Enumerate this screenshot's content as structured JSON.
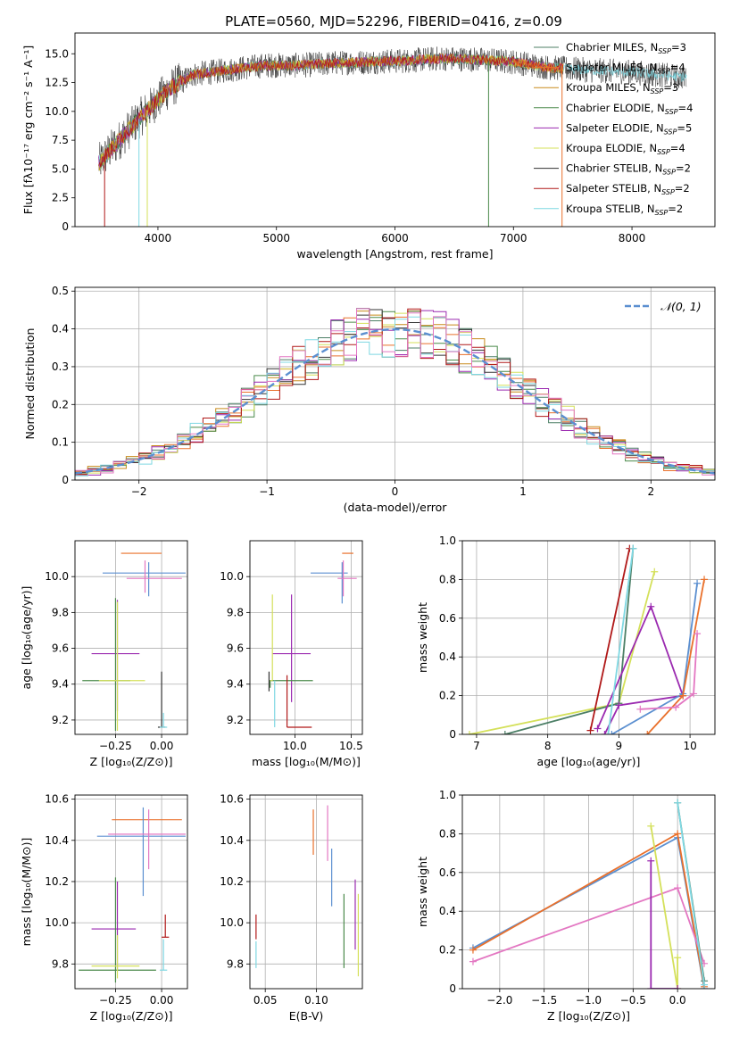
{
  "chart_data": [
    {
      "id": "spectrum",
      "type": "line",
      "title": "PLATE=0560, MJD=52296, FIBERID=0416, z=0.09",
      "xlabel": "wavelength [Angstrom, rest frame]",
      "ylabel": "Flux [fλ10⁻¹⁷ erg cm⁻² s⁻¹ A⁻¹]",
      "xlim": [
        3300,
        8700
      ],
      "ylim": [
        0,
        16.8
      ],
      "xticks": [
        4000,
        5000,
        6000,
        7000,
        8000
      ],
      "yticks": [
        0.0,
        2.5,
        5.0,
        7.5,
        10.0,
        12.5,
        15.0
      ],
      "legend_position": "right",
      "series": [
        {
          "name": "Chabrier MILES, N",
          "sub": "SSP",
          "post": "=3",
          "color": "#4c7f66"
        },
        {
          "name": "Salpeter MILES, N",
          "sub": "SSP",
          "post": "=4",
          "color": "#e9702b"
        },
        {
          "name": "Kroupa MILES, N",
          "sub": "SSP",
          "post": "=3",
          "color": "#c88a1a"
        },
        {
          "name": "Chabrier ELODIE, N",
          "sub": "SSP",
          "post": "=4",
          "color": "#4a8a4a"
        },
        {
          "name": "Salpeter ELODIE, N",
          "sub": "SSP",
          "post": "=5",
          "color": "#9b2ab0"
        },
        {
          "name": "Kroupa ELODIE, N",
          "sub": "SSP",
          "post": "=4",
          "color": "#d4e05a"
        },
        {
          "name": "Chabrier STELIB, N",
          "sub": "SSP",
          "post": "=2",
          "color": "#333333"
        },
        {
          "name": "Salpeter STELIB, N",
          "sub": "SSP",
          "post": "=2",
          "color": "#b01818"
        },
        {
          "name": "Kroupa STELIB, N",
          "sub": "SSP",
          "post": "=2",
          "color": "#7fd8e2"
        }
      ],
      "continuum": {
        "x": [
          3500,
          3700,
          3900,
          4100,
          4300,
          4600,
          4900,
          5200,
          5500,
          5800,
          6100,
          6400,
          6700,
          7000,
          7300,
          7600,
          8000,
          8400
        ],
        "y": [
          5.5,
          7.8,
          10.0,
          12.0,
          13.2,
          13.6,
          14.0,
          14.0,
          14.2,
          14.3,
          14.4,
          14.6,
          14.5,
          14.3,
          13.8,
          13.6,
          13.4,
          13.0
        ]
      },
      "spikes": [
        {
          "x": 3550,
          "color": "#b01818"
        },
        {
          "x": 3840,
          "color": "#7fd8e2"
        },
        {
          "x": 3910,
          "color": "#d4e05a"
        },
        {
          "x": 6790,
          "color": "#4a8a4a"
        },
        {
          "x": 7410,
          "color": "#e9702b"
        }
      ]
    },
    {
      "id": "residuals",
      "type": "histogram",
      "xlabel": "(data-model)/error",
      "ylabel": "Normed distribution",
      "xlim": [
        -2.5,
        2.5
      ],
      "ylim": [
        0,
        0.51
      ],
      "xticks": [
        -2,
        -1,
        0,
        1,
        2
      ],
      "xtick_labels": [
        "−2",
        "−1",
        "0",
        "1",
        "2"
      ],
      "yticks": [
        0.0,
        0.1,
        0.2,
        0.3,
        0.4,
        0.5
      ],
      "legend": {
        "label": "𝒩(0, 1)",
        "position": "top-right",
        "color": "#5b8fd0"
      },
      "bin_width": 0.1,
      "series_colors": [
        "#4c7f66",
        "#e9702b",
        "#c88a1a",
        "#4a8a4a",
        "#9b2ab0",
        "#d4e05a",
        "#333333",
        "#b01818",
        "#7fd8e2",
        "#e377c2"
      ]
    },
    {
      "id": "age_vs_Z",
      "type": "errorbar",
      "xlabel": "Z [log₁₀(Z/Z⊙)]",
      "ylabel": "age  [log₁₀(age/yr)]",
      "xlim": [
        -0.47,
        0.14
      ],
      "ylim": [
        9.12,
        10.2
      ],
      "xticks": [
        -0.25,
        0.0
      ],
      "xtick_labels": [
        "−0.25",
        "0.00"
      ],
      "yticks": [
        9.2,
        9.4,
        9.6,
        9.8,
        10.0
      ],
      "points": [
        {
          "x": 0.0,
          "y": 10.13,
          "xerr": [
            0.22,
            0.0
          ],
          "yerr": [
            0.0,
            0.0
          ],
          "color": "#e9702b"
        },
        {
          "x": -0.07,
          "y": 10.02,
          "xerr": [
            0.25,
            0.2
          ],
          "yerr": [
            0.13,
            0.06
          ],
          "color": "#5b8fd0"
        },
        {
          "x": -0.09,
          "y": 9.99,
          "xerr": [
            0.1,
            0.2
          ],
          "yerr": [
            0.08,
            0.1
          ],
          "color": "#e377c2"
        },
        {
          "x": -0.24,
          "y": 9.57,
          "xerr": [
            0.14,
            0.12
          ],
          "yerr": [
            0.32,
            0.3
          ],
          "color": "#9b2ab0"
        },
        {
          "x": -0.25,
          "y": 9.42,
          "xerr": [
            0.18,
            0.08
          ],
          "yerr": [
            0.28,
            0.46
          ],
          "color": "#4a8a4a"
        },
        {
          "x": -0.24,
          "y": 9.42,
          "xerr": [
            0.1,
            0.15
          ],
          "yerr": [
            0.28,
            0.44
          ],
          "color": "#d4e05a"
        },
        {
          "x": 0.0,
          "y": 9.16,
          "xerr": [
            0.02,
            0.02
          ],
          "yerr": [
            0.0,
            0.31
          ],
          "color": "#333333"
        },
        {
          "x": 0.01,
          "y": 9.16,
          "xerr": [
            0.02,
            0.02
          ],
          "yerr": [
            0.0,
            0.08
          ],
          "color": "#7fd8e2"
        }
      ]
    },
    {
      "id": "age_vs_mass",
      "type": "errorbar",
      "xlabel": "mass [log₁₀(M/M⊙)]",
      "ylabel": "",
      "xlim": [
        9.6,
        10.6
      ],
      "ylim": [
        9.12,
        10.2
      ],
      "xticks": [
        10.0,
        10.5
      ],
      "xtick_labels": [
        "10.0",
        "10.5"
      ],
      "yticks": [
        9.2,
        9.4,
        9.6,
        9.8,
        10.0
      ],
      "points": [
        {
          "x": 10.5,
          "y": 10.13,
          "xerr": [
            0.08,
            0.02
          ],
          "yerr": [
            0.0,
            0.0
          ],
          "color": "#e9702b"
        },
        {
          "x": 10.42,
          "y": 10.02,
          "xerr": [
            0.28,
            0.05
          ],
          "yerr": [
            0.17,
            0.06
          ],
          "color": "#5b8fd0"
        },
        {
          "x": 10.43,
          "y": 9.99,
          "xerr": [
            0.05,
            0.12
          ],
          "yerr": [
            0.1,
            0.1
          ],
          "color": "#e377c2"
        },
        {
          "x": 9.97,
          "y": 9.57,
          "xerr": [
            0.17,
            0.17
          ],
          "yerr": [
            0.27,
            0.33
          ],
          "color": "#9b2ab0"
        },
        {
          "x": 9.78,
          "y": 9.42,
          "xerr": [
            0.01,
            0.38
          ],
          "yerr": [
            0.04,
            0.0
          ],
          "color": "#4a8a4a"
        },
        {
          "x": 9.8,
          "y": 9.42,
          "xerr": [
            0.02,
            0.0
          ],
          "yerr": [
            0.0,
            0.48
          ],
          "color": "#d4e05a"
        },
        {
          "x": 9.77,
          "y": 9.42,
          "xerr": [
            0.0,
            0.0
          ],
          "yerr": [
            0.06,
            0.05
          ],
          "color": "#333333"
        },
        {
          "x": 9.93,
          "y": 9.16,
          "xerr": [
            0.0,
            0.22
          ],
          "yerr": [
            0.0,
            0.29
          ],
          "color": "#b01818"
        },
        {
          "x": 9.82,
          "y": 9.16,
          "xerr": [
            0.0,
            0.0
          ],
          "yerr": [
            0.0,
            0.26
          ],
          "color": "#7fd8e2"
        }
      ]
    },
    {
      "id": "mass_weight_vs_age",
      "type": "line",
      "xlabel": "age  [log₁₀(age/yr)]",
      "ylabel": "mass weight",
      "xlim": [
        6.8,
        10.35
      ],
      "ylim": [
        0,
        1.0
      ],
      "xticks": [
        7,
        8,
        9,
        10
      ],
      "xtick_labels": [
        "7",
        "8",
        "9",
        "10"
      ],
      "yticks": [
        0.0,
        0.2,
        0.4,
        0.6,
        0.8,
        1.0
      ],
      "series": [
        {
          "color": "#d4e05a",
          "points": [
            [
              6.9,
              0.0
            ],
            [
              9.0,
              0.16
            ],
            [
              9.5,
              0.84
            ]
          ]
        },
        {
          "color": "#4c7f66",
          "points": [
            [
              7.4,
              0.0
            ],
            [
              9.0,
              0.16
            ],
            [
              9.2,
              0.96
            ]
          ]
        },
        {
          "color": "#b01818",
          "points": [
            [
              8.6,
              0.02
            ],
            [
              9.15,
              0.96
            ]
          ]
        },
        {
          "color": "#9b2ab0",
          "points": [
            [
              8.7,
              0.03
            ],
            [
              9.45,
              0.66
            ],
            [
              9.9,
              0.2
            ],
            [
              9.0,
              0.15
            ],
            [
              8.8,
              0.0
            ]
          ]
        },
        {
          "color": "#7fd8e2",
          "points": [
            [
              8.85,
              0.0
            ],
            [
              9.2,
              0.96
            ]
          ]
        },
        {
          "color": "#5b8fd0",
          "points": [
            [
              8.9,
              0.0
            ],
            [
              9.9,
              0.21
            ],
            [
              10.1,
              0.78
            ]
          ]
        },
        {
          "color": "#e9702b",
          "points": [
            [
              9.4,
              0.0
            ],
            [
              9.9,
              0.2
            ],
            [
              10.2,
              0.8
            ]
          ]
        },
        {
          "color": "#e377c2",
          "points": [
            [
              9.3,
              0.13
            ],
            [
              9.8,
              0.14
            ],
            [
              10.05,
              0.21
            ],
            [
              10.1,
              0.52
            ]
          ]
        }
      ]
    },
    {
      "id": "mass_vs_Z",
      "type": "errorbar",
      "xlabel": "Z [log₁₀(Z/Z⊙)]",
      "ylabel": "mass [log₁₀(M/M⊙)]",
      "xlim": [
        -0.47,
        0.14
      ],
      "ylim": [
        9.68,
        10.62
      ],
      "xticks": [
        -0.25,
        0.0
      ],
      "xtick_labels": [
        "−0.25",
        "0.00"
      ],
      "yticks": [
        9.8,
        10.0,
        10.2,
        10.4,
        10.6
      ],
      "points": [
        {
          "x": -0.09,
          "y": 10.5,
          "xerr": [
            0.18,
            0.2
          ],
          "yerr": [
            0.0,
            0.0
          ],
          "color": "#e9702b"
        },
        {
          "x": -0.1,
          "y": 10.42,
          "xerr": [
            0.25,
            0.23
          ],
          "yerr": [
            0.29,
            0.14
          ],
          "color": "#5b8fd0"
        },
        {
          "x": -0.07,
          "y": 10.43,
          "xerr": [
            0.22,
            0.2
          ],
          "yerr": [
            0.17,
            0.12
          ],
          "color": "#e377c2"
        },
        {
          "x": -0.24,
          "y": 9.97,
          "xerr": [
            0.14,
            0.1
          ],
          "yerr": [
            0.2,
            0.23
          ],
          "color": "#9b2ab0"
        },
        {
          "x": -0.25,
          "y": 9.77,
          "xerr": [
            0.2,
            0.22
          ],
          "yerr": [
            0.06,
            0.45
          ],
          "color": "#4a8a4a"
        },
        {
          "x": -0.24,
          "y": 9.79,
          "xerr": [
            0.14,
            0.12
          ],
          "yerr": [
            0.06,
            0.15
          ],
          "color": "#d4e05a"
        },
        {
          "x": 0.02,
          "y": 9.93,
          "xerr": [
            0.02,
            0.02
          ],
          "yerr": [
            0.0,
            0.11
          ],
          "color": "#b01818"
        },
        {
          "x": 0.01,
          "y": 9.77,
          "xerr": [
            0.02,
            0.02
          ],
          "yerr": [
            0.0,
            0.15
          ],
          "color": "#7fd8e2"
        }
      ]
    },
    {
      "id": "mass_vs_EBV",
      "type": "errorbar",
      "xlabel": "E(B-V)",
      "ylabel": "",
      "xlim": [
        0.035,
        0.145
      ],
      "ylim": [
        9.68,
        10.62
      ],
      "xticks": [
        0.05,
        0.1
      ],
      "xtick_labels": [
        "0.05",
        "0.10"
      ],
      "yticks": [
        9.8,
        10.0,
        10.2,
        10.4,
        10.6
      ],
      "points": [
        {
          "x": 0.097,
          "y": 10.5,
          "yerr": [
            0.17,
            0.05
          ],
          "color": "#e9702b"
        },
        {
          "x": 0.111,
          "y": 10.42,
          "yerr": [
            0.12,
            0.15
          ],
          "color": "#e377c2"
        },
        {
          "x": 0.115,
          "y": 10.2,
          "yerr": [
            0.12,
            0.16
          ],
          "color": "#5b8fd0"
        },
        {
          "x": 0.127,
          "y": 10.0,
          "yerr": [
            0.22,
            0.14
          ],
          "color": "#4a8a4a"
        },
        {
          "x": 0.138,
          "y": 10.05,
          "yerr": [
            0.18,
            0.16
          ],
          "color": "#9b2ab0"
        },
        {
          "x": 0.141,
          "y": 9.94,
          "yerr": [
            0.2,
            0.2
          ],
          "color": "#d4e05a"
        },
        {
          "x": 0.041,
          "y": 9.97,
          "yerr": [
            0.05,
            0.07
          ],
          "color": "#b01818"
        },
        {
          "x": 0.041,
          "y": 9.85,
          "yerr": [
            0.07,
            0.06
          ],
          "color": "#7fd8e2"
        }
      ]
    },
    {
      "id": "mass_weight_vs_Z",
      "type": "line",
      "xlabel": "Z [log₁₀(Z/Z⊙)]",
      "ylabel": "mass weight",
      "xlim": [
        -2.42,
        0.42
      ],
      "ylim": [
        0,
        1.0
      ],
      "xticks": [
        -2.0,
        -1.5,
        -1.0,
        -0.5,
        0.0
      ],
      "xtick_labels": [
        "−2.0",
        "−1.5",
        "−1.0",
        "−0.5",
        "0.0"
      ],
      "yticks": [
        0.0,
        0.2,
        0.4,
        0.6,
        0.8,
        1.0
      ],
      "series": [
        {
          "color": "#5b8fd0",
          "points": [
            [
              -2.3,
              0.21
            ],
            [
              0.0,
              0.78
            ],
            [
              0.3,
              0.0
            ]
          ]
        },
        {
          "color": "#e9702b",
          "points": [
            [
              -2.3,
              0.2
            ],
            [
              0.0,
              0.8
            ],
            [
              0.3,
              0.01
            ]
          ]
        },
        {
          "color": "#e377c2",
          "points": [
            [
              -2.3,
              0.14
            ],
            [
              0.0,
              0.52
            ],
            [
              0.3,
              0.13
            ]
          ]
        },
        {
          "color": "#d4e05a",
          "points": [
            [
              -0.3,
              0.84
            ],
            [
              0.0,
              0.0
            ],
            [
              0.0,
              0.16
            ]
          ]
        },
        {
          "color": "#4c7f66",
          "points": [
            [
              0.0,
              0.96
            ],
            [
              0.3,
              0.04
            ]
          ]
        },
        {
          "color": "#7fd8e2",
          "points": [
            [
              0.0,
              0.96
            ],
            [
              0.3,
              0.02
            ]
          ]
        },
        {
          "color": "#9b2ab0",
          "points": [
            [
              -0.3,
              0.66
            ],
            [
              -0.3,
              0.0
            ],
            [
              0.0,
              0.0
            ]
          ]
        }
      ]
    }
  ]
}
